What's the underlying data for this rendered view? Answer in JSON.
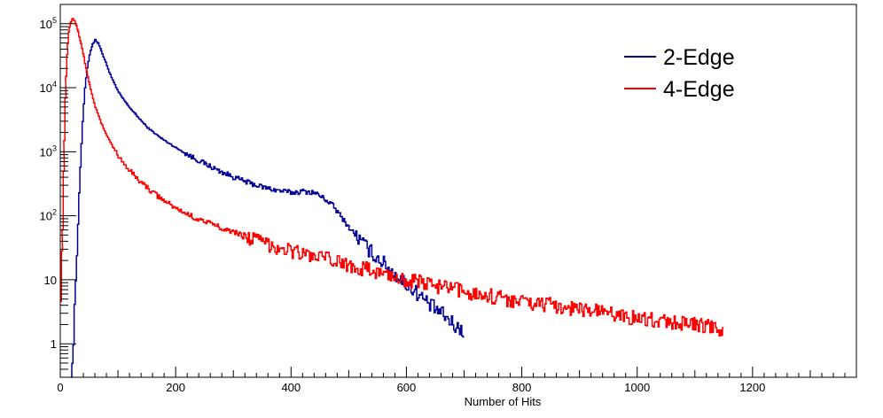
{
  "chart_data": {
    "type": "line",
    "title": "",
    "xlabel": "Number of Hits",
    "ylabel": "",
    "xlim": [
      0,
      1380
    ],
    "ylim": [
      0.3,
      200000
    ],
    "log_y": true,
    "grid": false,
    "legend_position": "top-right",
    "x_ticks": [
      0,
      200,
      400,
      600,
      800,
      1000,
      1200
    ],
    "x_tick_labels": [
      "0",
      "200",
      "400",
      "600",
      "800",
      "1000",
      "1200"
    ],
    "y_ticks": [
      1,
      10,
      100,
      1000,
      10000,
      100000
    ],
    "y_tick_labels": [
      {
        "base": "1",
        "exp": ""
      },
      {
        "base": "10",
        "exp": ""
      },
      {
        "base": "10",
        "exp": "2"
      },
      {
        "base": "10",
        "exp": "3"
      },
      {
        "base": "10",
        "exp": "4"
      },
      {
        "base": "10",
        "exp": "5"
      }
    ],
    "series": [
      {
        "name": "2-Edge",
        "color": "#000099",
        "x": [
          18,
          22,
          26,
          30,
          34,
          38,
          42,
          46,
          50,
          55,
          60,
          65,
          70,
          80,
          90,
          100,
          115,
          130,
          150,
          175,
          200,
          225,
          250,
          275,
          300,
          325,
          350,
          375,
          400,
          420,
          440,
          455,
          470,
          485,
          500,
          520,
          540,
          560,
          580,
          600,
          620,
          640,
          660,
          680,
          700
        ],
        "y": [
          0.3,
          1,
          10,
          80,
          600,
          3000,
          10000,
          20000,
          33000,
          48000,
          56000,
          50000,
          38000,
          22000,
          13000,
          8500,
          5500,
          3800,
          2400,
          1600,
          1150,
          850,
          650,
          500,
          400,
          330,
          280,
          250,
          230,
          240,
          230,
          190,
          150,
          100,
          65,
          40,
          26,
          18,
          12,
          8.5,
          6,
          4,
          3,
          2,
          1.5
        ]
      },
      {
        "name": "4-Edge",
        "color": "#ff0000",
        "x": [
          0,
          3,
          6,
          9,
          12,
          15,
          18,
          21,
          24,
          27,
          30,
          35,
          40,
          45,
          50,
          60,
          70,
          80,
          90,
          100,
          120,
          140,
          160,
          180,
          200,
          230,
          260,
          290,
          320,
          350,
          380,
          410,
          440,
          470,
          500,
          550,
          600,
          650,
          700,
          750,
          800,
          850,
          900,
          950,
          1000,
          1050,
          1100,
          1150
        ],
        "y": [
          6,
          60,
          1500,
          15000,
          50000,
          90000,
          110000,
          120000,
          110000,
          95000,
          75000,
          50000,
          30000,
          18000,
          11000,
          5000,
          2800,
          1800,
          1200,
          850,
          500,
          330,
          230,
          170,
          130,
          95,
          75,
          60,
          48,
          38,
          32,
          27,
          23,
          20,
          17,
          13,
          10,
          8,
          6.5,
          5.5,
          4.5,
          4,
          3.5,
          3,
          2.5,
          2.2,
          2,
          1.6
        ]
      }
    ],
    "legend": [
      {
        "label": "2-Edge",
        "color": "#000099"
      },
      {
        "label": "4-Edge",
        "color": "#ff0000"
      }
    ]
  }
}
